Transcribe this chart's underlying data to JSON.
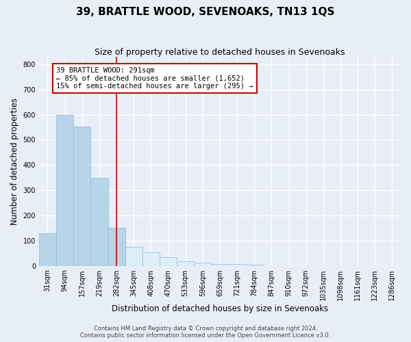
{
  "title": "39, BRATTLE WOOD, SEVENOAKS, TN13 1QS",
  "subtitle": "Size of property relative to detached houses in Sevenoaks",
  "xlabel": "Distribution of detached houses by size in Sevenoaks",
  "ylabel": "Number of detached properties",
  "bar_labels": [
    "31sqm",
    "94sqm",
    "157sqm",
    "219sqm",
    "282sqm",
    "345sqm",
    "408sqm",
    "470sqm",
    "533sqm",
    "596sqm",
    "659sqm",
    "721sqm",
    "784sqm",
    "847sqm",
    "910sqm",
    "972sqm",
    "1035sqm",
    "1098sqm",
    "1161sqm",
    "1223sqm",
    "1286sqm"
  ],
  "bar_values": [
    128,
    600,
    553,
    348,
    150,
    75,
    52,
    35,
    18,
    12,
    8,
    8,
    5,
    0,
    0,
    0,
    0,
    0,
    0,
    0,
    0
  ],
  "vline_bar_index": 4,
  "bar_color_left": "#b8d4e8",
  "bar_color_right": "#ddeef8",
  "vline_color": "#cc0000",
  "annotation_text": "39 BRATTLE WOOD: 291sqm\n← 85% of detached houses are smaller (1,652)\n15% of semi-detached houses are larger (295) →",
  "annotation_box_color": "#ffffff",
  "annotation_box_edge": "#cc0000",
  "ylim": [
    0,
    830
  ],
  "yticks": [
    0,
    100,
    200,
    300,
    400,
    500,
    600,
    700,
    800
  ],
  "footer_line1": "Contains HM Land Registry data © Crown copyright and database right 2024.",
  "footer_line2": "Contains public sector information licensed under the Open Government Licence v3.0.",
  "background_color": "#e8eef8",
  "plot_bg_color": "#e8eef8",
  "grid_color": "#ffffff",
  "title_fontsize": 11,
  "subtitle_fontsize": 9,
  "axis_label_fontsize": 8.5,
  "tick_fontsize": 7,
  "annotation_fontsize": 7.5,
  "footer_fontsize": 6
}
